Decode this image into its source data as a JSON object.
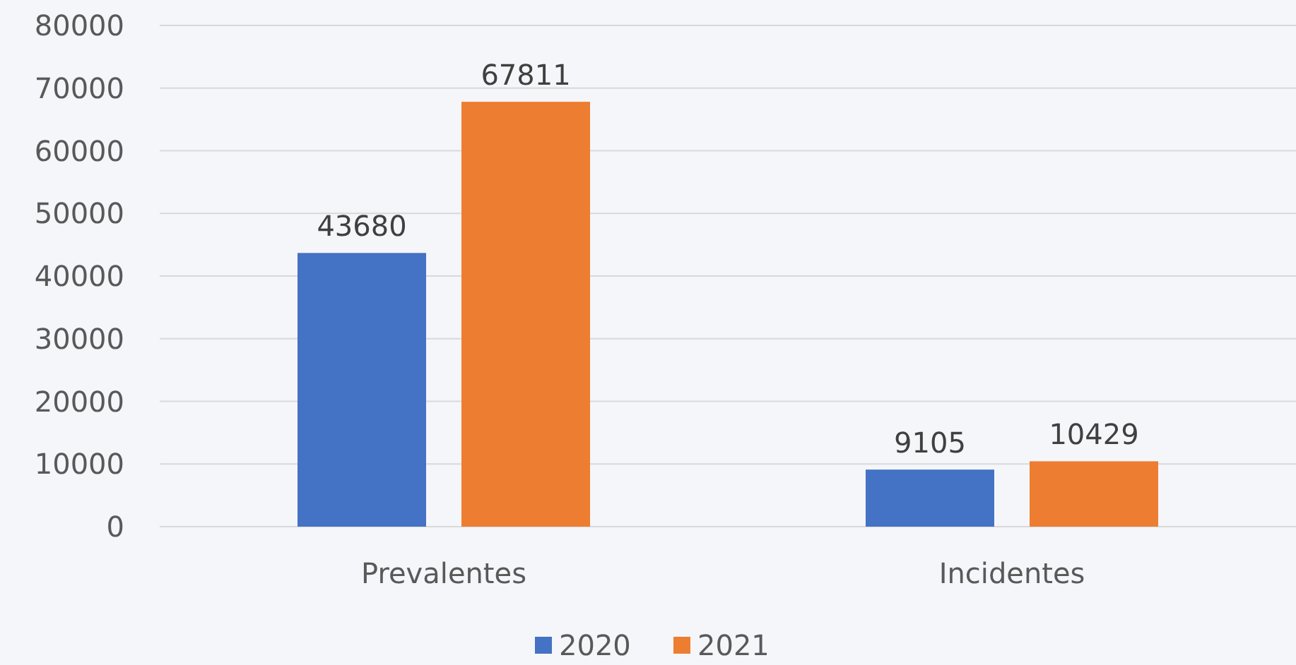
{
  "chart_data": {
    "type": "bar",
    "categories": [
      "Prevalentes",
      "Incidentes"
    ],
    "series": [
      {
        "name": "2020",
        "color": "#4472c4",
        "values": [
          43680,
          9105
        ]
      },
      {
        "name": "2021",
        "color": "#ed7d31",
        "values": [
          67811,
          10429
        ]
      }
    ],
    "ylim": [
      0,
      80000
    ],
    "yticks": [
      0,
      10000,
      20000,
      30000,
      40000,
      50000,
      60000,
      70000,
      80000
    ],
    "grid": "y",
    "legend": "bottom",
    "data_labels": true
  }
}
